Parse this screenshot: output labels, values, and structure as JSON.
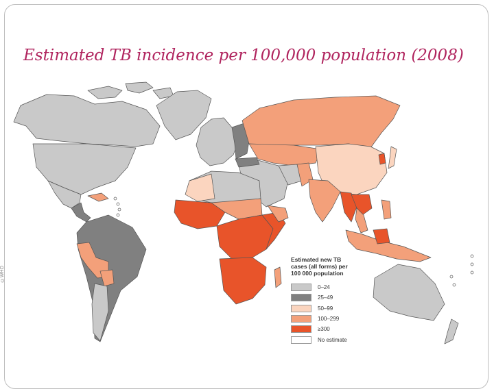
{
  "title": "Estimated TB incidence per 100,000 population (2008)",
  "legend": {
    "title_lines": [
      "Estimated new TB",
      "cases (all forms) per",
      "100 000 population"
    ],
    "items": [
      {
        "label": "0–24",
        "color": "#c9c9c9"
      },
      {
        "label": "25–49",
        "color": "#808080"
      },
      {
        "label": "50–99",
        "color": "#fbd5bf"
      },
      {
        "label": "100–299",
        "color": "#f3a07a"
      },
      {
        "label": "≥300",
        "color": "#e8542a"
      },
      {
        "label": "No estimate",
        "color": "#ffffff"
      }
    ]
  },
  "side_mark": "©WHO",
  "colors": {
    "title": "#b0245e",
    "border": "#555555"
  }
}
